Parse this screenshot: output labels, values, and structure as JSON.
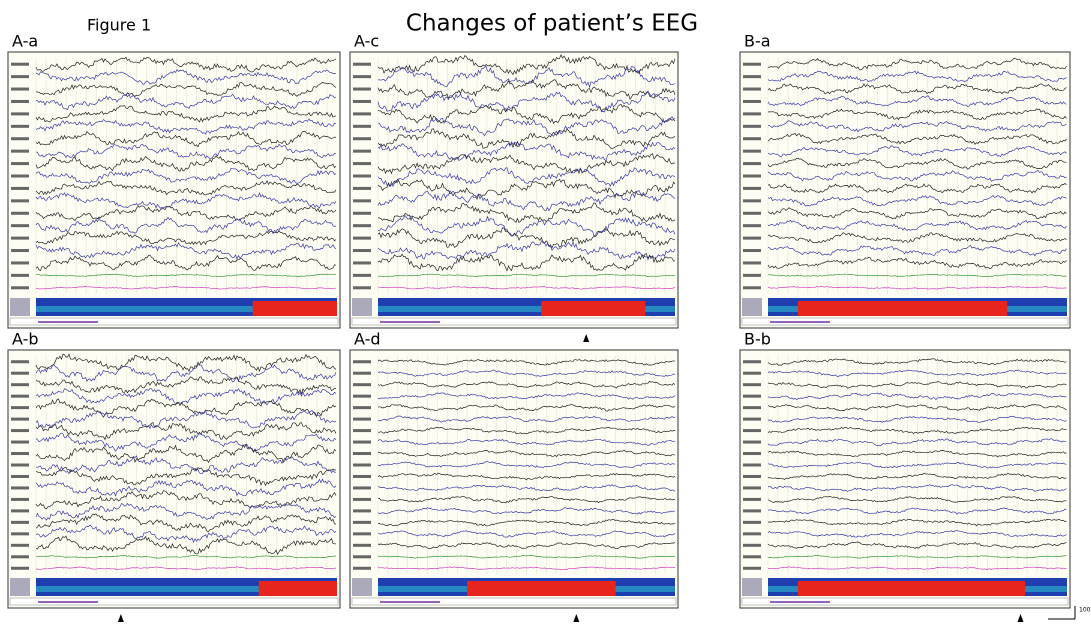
{
  "header": {
    "figure_label": "Figure 1",
    "title": "Changes of patient’s EEG"
  },
  "panels": [
    {
      "label": "A-a"
    },
    {
      "label": "A-c"
    },
    {
      "label": "B-a"
    },
    {
      "label": "A-b"
    },
    {
      "label": "A-d"
    },
    {
      "label": "B-b"
    }
  ],
  "scale_label": "100"
}
